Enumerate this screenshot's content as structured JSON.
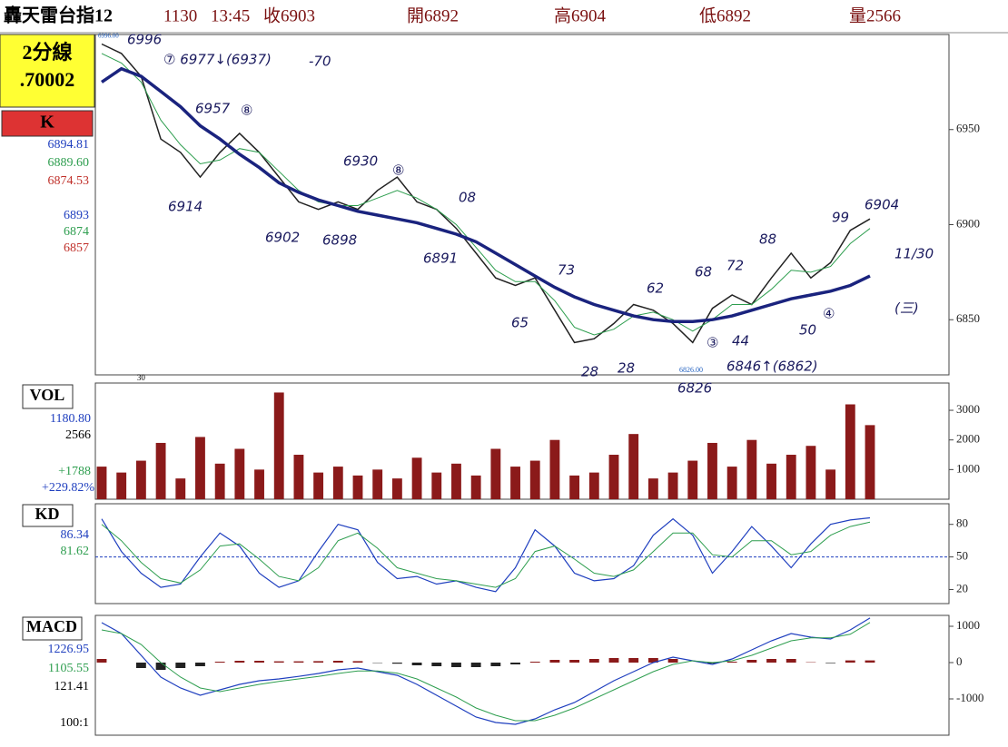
{
  "header": [
    "轟天雷台指12",
    "1130",
    "13:45",
    "收6903",
    "開6892",
    "高6904",
    "低6892",
    "量2566"
  ],
  "sidebar": [
    {
      "text": "2分線",
      "color": "#000"
    },
    {
      "text": ".70002",
      "color": "#000"
    },
    {
      "text": "K",
      "color": "#000"
    },
    {
      "text": "6894.81",
      "color": "#1f3fbf"
    },
    {
      "text": "6889.60",
      "color": "#2e9e4f"
    },
    {
      "text": "6874.53",
      "color": "#c0302a"
    },
    {
      "text": "6893",
      "color": "#1f3fbf"
    },
    {
      "text": "6874",
      "color": "#2e9e4f"
    },
    {
      "text": "6857",
      "color": "#c0302a"
    },
    {
      "text": "VOL",
      "color": "#000"
    },
    {
      "text": "1180.80",
      "color": "#1f3fbf"
    },
    {
      "text": "2566",
      "color": "#000"
    },
    {
      "text": "+1788",
      "color": "#2e9e4f"
    },
    {
      "text": "+229.82%",
      "color": "#1f3fbf"
    },
    {
      "text": "KD",
      "color": "#000"
    },
    {
      "text": "86.34",
      "color": "#1f3fbf"
    },
    {
      "text": "81.62",
      "color": "#2e9e4f"
    },
    {
      "text": "MACD",
      "color": "#000"
    },
    {
      "text": "1226.95",
      "color": "#1f3fbf"
    },
    {
      "text": "1105.55",
      "color": "#2e9e4f"
    },
    {
      "text": "121.41",
      "color": "#000"
    },
    {
      "text": "100:1",
      "color": "#000"
    }
  ],
  "annotations": [
    "6996",
    "⑦ 6977↓(6937)",
    "-70",
    "6957",
    "⑧",
    "6914",
    "6902",
    "6898",
    "6930",
    "⑧",
    "08",
    "6891",
    "65",
    "73",
    "62",
    "68",
    "72",
    "88",
    "99",
    "6904",
    "11/30",
    "(三)",
    "28",
    "28",
    "6826",
    "③",
    "44",
    "6846↑(6862)",
    "50",
    "④",
    "6996.00",
    "6826.00"
  ],
  "chart_data": [
    {
      "type": "line",
      "categories": [
        null,
        null,
        "30",
        null,
        null,
        null,
        null,
        null,
        null,
        null,
        null,
        null,
        null,
        null,
        null,
        null,
        null,
        null,
        null,
        null,
        null,
        null,
        null,
        null,
        null,
        null,
        null,
        null,
        null,
        null,
        null,
        null,
        null,
        null,
        null,
        null,
        null,
        null,
        null,
        null
      ],
      "ylim": [
        6821,
        7000
      ],
      "yticks": [
        6850,
        6900,
        6950
      ],
      "series": [
        {
          "color": "#222222",
          "width": 1.5,
          "values": [
            6995,
            6990,
            6978,
            6945,
            6938,
            6925,
            6938,
            6948,
            6938,
            6925,
            6912,
            6908,
            6912,
            6908,
            6918,
            6925,
            6912,
            6908,
            6898,
            6885,
            6872,
            6868,
            6872,
            6855,
            6838,
            6840,
            6848,
            6858,
            6855,
            6848,
            6838,
            6856,
            6863,
            6858,
            6872,
            6885,
            6872,
            6880,
            6897,
            6903
          ]
        },
        {
          "color": "#2e9e4f",
          "width": 1,
          "values": [
            6990,
            6985,
            6975,
            6955,
            6942,
            6932,
            6934,
            6940,
            6938,
            6928,
            6918,
            6912,
            6910,
            6910,
            6914,
            6918,
            6914,
            6908,
            6900,
            6888,
            6876,
            6870,
            6870,
            6860,
            6846,
            6842,
            6845,
            6852,
            6854,
            6850,
            6844,
            6850,
            6858,
            6858,
            6866,
            6876,
            6875,
            6878,
            6890,
            6898
          ]
        },
        {
          "color": "#1a237e",
          "width": 3.5,
          "values": [
            6975,
            6982,
            6978,
            6970,
            6962,
            6952,
            6945,
            6937,
            6930,
            6922,
            6917,
            6913,
            6910,
            6907,
            6905,
            6903,
            6901,
            6898,
            6895,
            6891,
            6885,
            6879,
            6873,
            6867,
            6862,
            6858,
            6855,
            6852,
            6850,
            6849,
            6849,
            6850,
            6852,
            6855,
            6858,
            6861,
            6863,
            6865,
            6868,
            6873
          ]
        }
      ]
    },
    {
      "type": "bar",
      "ylim": [
        0,
        3920
      ],
      "yticks": [
        1000,
        2000,
        3000
      ],
      "color": "#8b1a1a",
      "values": [
        1100,
        900,
        1300,
        1900,
        700,
        2100,
        1200,
        1700,
        1000,
        3600,
        1500,
        900,
        1100,
        800,
        1000,
        700,
        1400,
        900,
        1200,
        800,
        1700,
        1100,
        1300,
        2000,
        800,
        900,
        1500,
        2200,
        700,
        900,
        1300,
        1900,
        1100,
        2000,
        1200,
        1500,
        1800,
        1000,
        3200,
        2500
      ]
    },
    {
      "type": "line",
      "ylim": [
        7,
        99
      ],
      "yticks": [
        20,
        50,
        80
      ],
      "hline": 50,
      "series": [
        {
          "color": "#1f3fbf",
          "width": 1.2,
          "values": [
            85,
            55,
            35,
            22,
            25,
            50,
            72,
            60,
            35,
            22,
            28,
            55,
            80,
            75,
            45,
            30,
            32,
            25,
            28,
            22,
            18,
            40,
            75,
            60,
            35,
            28,
            30,
            42,
            70,
            85,
            70,
            35,
            55,
            78,
            60,
            40,
            62,
            80,
            84,
            86
          ]
        },
        {
          "color": "#2e9e4f",
          "width": 1,
          "values": [
            80,
            65,
            45,
            30,
            26,
            38,
            60,
            62,
            48,
            32,
            28,
            40,
            65,
            72,
            58,
            40,
            35,
            30,
            28,
            25,
            22,
            30,
            55,
            60,
            48,
            35,
            32,
            38,
            55,
            72,
            72,
            52,
            50,
            65,
            65,
            52,
            55,
            70,
            78,
            82
          ]
        }
      ]
    },
    {
      "type": "line",
      "ylim": [
        -2000,
        1300
      ],
      "yticks": [
        -1000,
        0,
        1000
      ],
      "series": [
        {
          "style": "bar",
          "values": [
            100,
            0,
            -150,
            -200,
            -150,
            -100,
            25,
            50,
            50,
            35,
            35,
            40,
            50,
            40,
            -10,
            -30,
            -75,
            -100,
            -125,
            -125,
            -100,
            -50,
            25,
            75,
            75,
            100,
            125,
            125,
            125,
            100,
            0,
            -25,
            25,
            75,
            100,
            100,
            10,
            -15,
            60,
            60
          ]
        },
        {
          "color": "#1f3fbf",
          "width": 1.2,
          "values": [
            1100,
            800,
            200,
            -400,
            -700,
            -900,
            -750,
            -600,
            -500,
            -450,
            -380,
            -300,
            -200,
            -150,
            -250,
            -350,
            -600,
            -900,
            -1200,
            -1500,
            -1650,
            -1700,
            -1550,
            -1300,
            -1100,
            -800,
            -500,
            -250,
            0,
            150,
            50,
            -50,
            100,
            350,
            600,
            800,
            700,
            650,
            900,
            1227
          ]
        },
        {
          "color": "#2e9e4f",
          "width": 1,
          "values": [
            900,
            800,
            500,
            0,
            -400,
            -700,
            -800,
            -700,
            -600,
            -520,
            -450,
            -380,
            -300,
            -230,
            -230,
            -290,
            -450,
            -700,
            -950,
            -1250,
            -1450,
            -1600,
            -1600,
            -1450,
            -1250,
            -1000,
            -750,
            -500,
            -250,
            -50,
            50,
            0,
            50,
            200,
            400,
            600,
            680,
            680,
            780,
            1106
          ]
        }
      ]
    }
  ]
}
